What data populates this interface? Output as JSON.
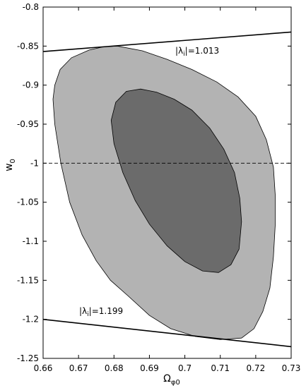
{
  "chart_data": {
    "type": "contour",
    "xlabel": "Ω",
    "xlabel_sub": "φ0",
    "ylabel": "w",
    "ylabel_sub": "0",
    "xlim": [
      0.66,
      0.73
    ],
    "ylim": [
      -1.25,
      -0.8
    ],
    "xticks": [
      0.66,
      0.67,
      0.68,
      0.69,
      0.7,
      0.71,
      0.72,
      0.73
    ],
    "xtick_labels": [
      "0.66",
      "0.67",
      "0.68",
      "0.69",
      "0.7",
      "0.71",
      "0.72",
      "0.73"
    ],
    "yticks": [
      -0.8,
      -0.85,
      -0.9,
      -0.95,
      -1.0,
      -1.05,
      -1.1,
      -1.15,
      -1.2,
      -1.25
    ],
    "ytick_labels": [
      "-0.8",
      "-0.85",
      "-0.9",
      "-0.95",
      "-1",
      "-1.05",
      "-1.1",
      "-1.15",
      "-1.2",
      "-1.25"
    ],
    "colors": {
      "outer_region": "#b3b3b3",
      "inner_region": "#6b6b6b",
      "lines": "#000000"
    },
    "reference_line": {
      "y": -1.0,
      "style": "dashed"
    },
    "lines": [
      {
        "label_prefix": "|λ",
        "label_sub": "i",
        "label_suffix": "|=1.013",
        "x": [
          0.66,
          0.73
        ],
        "y": [
          -0.857,
          -0.832
        ]
      },
      {
        "label_prefix": "|λ",
        "label_sub": "i",
        "label_suffix": "|=1.199",
        "x": [
          0.66,
          0.73
        ],
        "y": [
          -1.2,
          -1.235
        ]
      }
    ],
    "regions": [
      {
        "level": "outer",
        "points": [
          [
            0.681,
            -0.85
          ],
          [
            0.688,
            -0.856
          ],
          [
            0.695,
            -0.867
          ],
          [
            0.702,
            -0.88
          ],
          [
            0.709,
            -0.896
          ],
          [
            0.715,
            -0.915
          ],
          [
            0.72,
            -0.94
          ],
          [
            0.723,
            -0.97
          ],
          [
            0.725,
            -1.005
          ],
          [
            0.7255,
            -1.04
          ],
          [
            0.7255,
            -1.08
          ],
          [
            0.725,
            -1.12
          ],
          [
            0.724,
            -1.16
          ],
          [
            0.722,
            -1.19
          ],
          [
            0.7195,
            -1.212
          ],
          [
            0.716,
            -1.224
          ],
          [
            0.71,
            -1.226
          ],
          [
            0.703,
            -1.222
          ],
          [
            0.696,
            -1.212
          ],
          [
            0.69,
            -1.195
          ],
          [
            0.684,
            -1.17
          ],
          [
            0.679,
            -1.15
          ],
          [
            0.675,
            -1.125
          ],
          [
            0.671,
            -1.092
          ],
          [
            0.6675,
            -1.05
          ],
          [
            0.665,
            -1.0
          ],
          [
            0.6633,
            -0.95
          ],
          [
            0.6628,
            -0.918
          ],
          [
            0.6633,
            -0.9
          ],
          [
            0.6648,
            -0.88
          ],
          [
            0.668,
            -0.865
          ],
          [
            0.673,
            -0.855
          ],
          [
            0.677,
            -0.851
          ]
        ]
      },
      {
        "level": "inner",
        "points": [
          [
            0.6875,
            -0.905
          ],
          [
            0.692,
            -0.909
          ],
          [
            0.697,
            -0.918
          ],
          [
            0.702,
            -0.932
          ],
          [
            0.707,
            -0.955
          ],
          [
            0.711,
            -0.982
          ],
          [
            0.714,
            -1.012
          ],
          [
            0.7155,
            -1.045
          ],
          [
            0.716,
            -1.075
          ],
          [
            0.7153,
            -1.11
          ],
          [
            0.713,
            -1.13
          ],
          [
            0.7095,
            -1.14
          ],
          [
            0.705,
            -1.138
          ],
          [
            0.7,
            -1.126
          ],
          [
            0.695,
            -1.106
          ],
          [
            0.69,
            -1.078
          ],
          [
            0.686,
            -1.048
          ],
          [
            0.6825,
            -1.012
          ],
          [
            0.68,
            -0.975
          ],
          [
            0.6792,
            -0.945
          ],
          [
            0.6805,
            -0.922
          ],
          [
            0.6835,
            -0.908
          ]
        ]
      }
    ]
  }
}
